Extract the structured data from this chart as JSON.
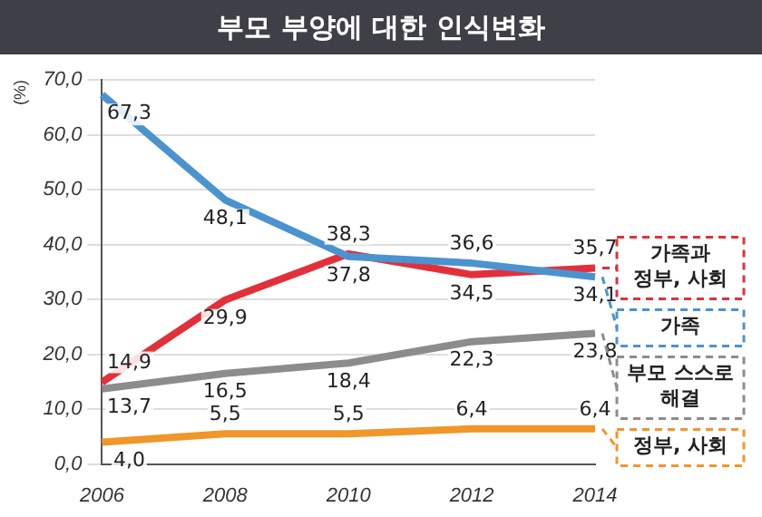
{
  "chart_data": {
    "type": "line",
    "title": "부모 부양에 대한 인식변화",
    "ylabel": "(%)",
    "categories": [
      "2006",
      "2008",
      "2010",
      "2012",
      "2014"
    ],
    "ylim": [
      0,
      70
    ],
    "yticks": [
      {
        "value": 0,
        "label": "0,0"
      },
      {
        "value": 10,
        "label": "10,0"
      },
      {
        "value": 20,
        "label": "20,0"
      },
      {
        "value": 30,
        "label": "30,0"
      },
      {
        "value": 40,
        "label": "40,0"
      },
      {
        "value": 50,
        "label": "50,0"
      },
      {
        "value": 60,
        "label": "60,0"
      },
      {
        "value": 70,
        "label": "70,0"
      }
    ],
    "grid": "y",
    "legend": "right",
    "marker": "none",
    "line_style": "solid",
    "series": [
      {
        "name": "가족",
        "color": "#4a93cf",
        "values": [
          67.3,
          48.1,
          37.8,
          36.6,
          34.1
        ],
        "value_labels": [
          "67,3",
          "48,1",
          "37,8",
          "36,6",
          "34,1"
        ]
      },
      {
        "name": "가족과 정부, 사회",
        "color": "#e2303a",
        "values": [
          14.9,
          29.9,
          38.3,
          34.5,
          35.7
        ],
        "value_labels": [
          "14,9",
          "29,9",
          "38,3",
          "34,5",
          "35,7"
        ]
      },
      {
        "name": "부모 스스로 해결",
        "color": "#8c8c8c",
        "values": [
          13.7,
          16.5,
          18.4,
          22.3,
          23.8
        ],
        "value_labels": [
          "13,7",
          "16,5",
          "18,4",
          "22,3",
          "23,8"
        ]
      },
      {
        "name": "정부, 사회",
        "color": "#f0962a",
        "values": [
          4.0,
          5.5,
          5.5,
          6.4,
          6.4
        ],
        "value_labels": [
          "4,0",
          "5,5",
          "5,5",
          "6,4",
          "6,4"
        ]
      }
    ]
  }
}
